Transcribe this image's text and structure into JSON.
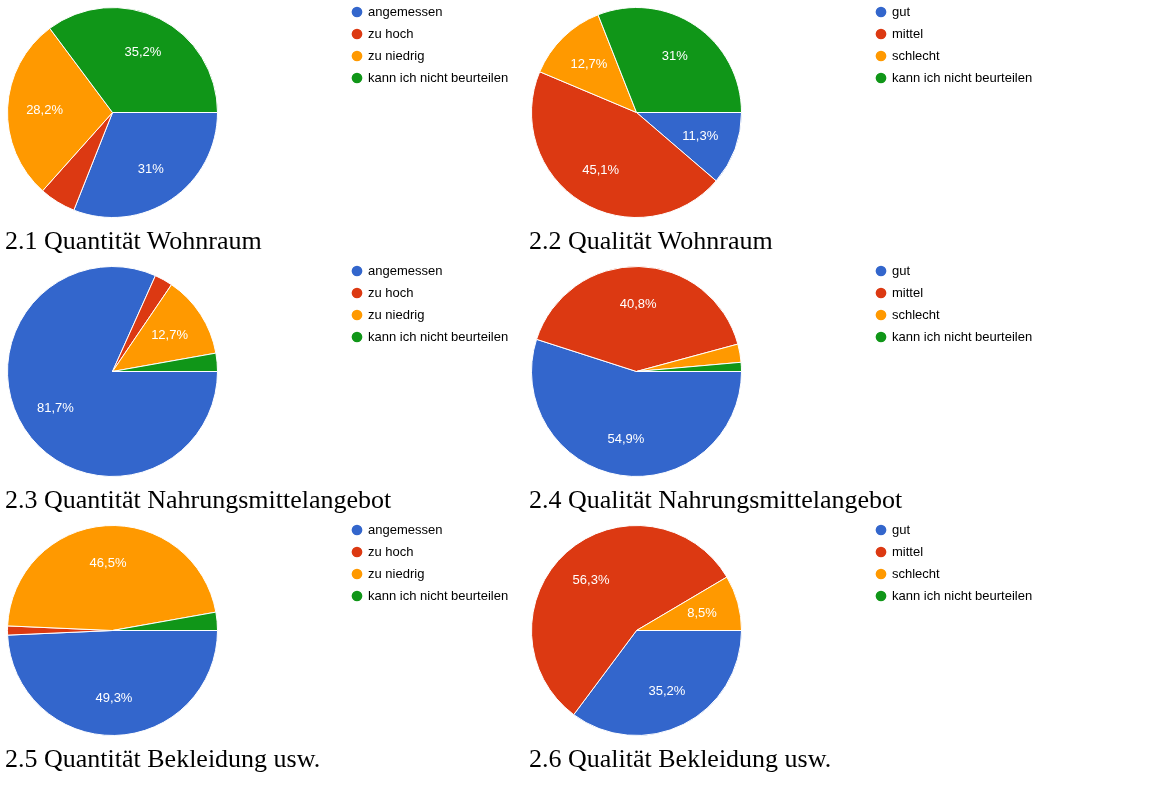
{
  "chart_data": [
    {
      "type": "pie",
      "title": "2.1 Quantität Wohnraum",
      "categories": [
        "angemessen",
        "zu hoch",
        "zu niedrig",
        "kann ich nicht beurteilen"
      ],
      "values": [
        31,
        5.6,
        28.2,
        35.2
      ],
      "value_labels": [
        "31%",
        null,
        "28,2%",
        "35,2%"
      ],
      "colors": [
        "#3366cc",
        "#dc3912",
        "#ff9900",
        "#109618"
      ],
      "legend": "top right"
    },
    {
      "type": "pie",
      "title": "2.2 Qualität Wohnraum",
      "categories": [
        "gut",
        "mittel",
        "schlecht",
        "kann ich nicht beurteilen"
      ],
      "values": [
        11.3,
        45.1,
        12.7,
        31
      ],
      "value_labels": [
        "11,3%",
        "45,1%",
        "12,7%",
        "31%"
      ],
      "colors": [
        "#3366cc",
        "#dc3912",
        "#ff9900",
        "#109618"
      ],
      "legend": "top right"
    },
    {
      "type": "pie",
      "title": "2.3 Quantität Nahrungsmittelangebot",
      "categories": [
        "angemessen",
        "zu hoch",
        "zu niedrig",
        "kann ich nicht beurteilen"
      ],
      "values": [
        81.7,
        2.8,
        12.7,
        2.8
      ],
      "value_labels": [
        "81,7%",
        null,
        "12,7%",
        null
      ],
      "colors": [
        "#3366cc",
        "#dc3912",
        "#ff9900",
        "#109618"
      ],
      "legend": "top right"
    },
    {
      "type": "pie",
      "title": "2.4 Qualität Nahrungsmittelangebot",
      "categories": [
        "gut",
        "mittel",
        "schlecht",
        "kann ich nicht beurteilen"
      ],
      "values": [
        54.9,
        40.8,
        2.8,
        1.4
      ],
      "value_labels": [
        "54,9%",
        "40,8%",
        null,
        null
      ],
      "colors": [
        "#3366cc",
        "#dc3912",
        "#ff9900",
        "#109618"
      ],
      "legend": "top right"
    },
    {
      "type": "pie",
      "title": "2.5 Quantität Bekleidung usw.",
      "categories": [
        "angemessen",
        "zu hoch",
        "zu niedrig",
        "kann ich nicht beurteilen"
      ],
      "values": [
        49.3,
        1.4,
        46.5,
        2.8
      ],
      "value_labels": [
        "49,3%",
        null,
        "46,5%",
        null
      ],
      "colors": [
        "#3366cc",
        "#dc3912",
        "#ff9900",
        "#109618"
      ],
      "legend": "top right"
    },
    {
      "type": "pie",
      "title": "2.6 Qualität Bekleidung usw.",
      "categories": [
        "gut",
        "mittel",
        "schlecht",
        "kann ich nicht beurteilen"
      ],
      "values": [
        35.2,
        56.3,
        8.5,
        0
      ],
      "value_labels": [
        "35,2%",
        "56,3%",
        "8,5%",
        null
      ],
      "colors": [
        "#3366cc",
        "#dc3912",
        "#ff9900",
        "#109618"
      ],
      "legend": "top right"
    }
  ]
}
